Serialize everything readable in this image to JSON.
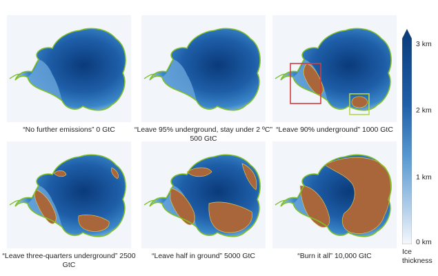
{
  "panels": [
    {
      "caption": "“No further emissions” 0 GtC",
      "scenario": "none",
      "boxes": false
    },
    {
      "caption": "“Leave 95% underground, stay under 2 ºC” 500 GtC",
      "scenario": "minimal",
      "boxes": false
    },
    {
      "caption": "“Leave 90% underground” 1000 GtC",
      "scenario": "low",
      "boxes": true
    },
    {
      "caption": "“Leave three-quarters underground” 2500 GtC",
      "scenario": "mid",
      "boxes": false
    },
    {
      "caption": "“Leave half in ground” 5000 GtC",
      "scenario": "high",
      "boxes": false
    },
    {
      "caption": "“Burn it all” 10,000 GtC",
      "scenario": "max",
      "boxes": false
    }
  ],
  "colorbar": {
    "ticks": [
      "3 km",
      "2 km",
      "1 km",
      "0 km"
    ],
    "title_line1": "Ice",
    "title_line2": "thickness",
    "colors": {
      "thick": "#0a3a7a",
      "mid": "#3a86c8",
      "thin": "#dfe9f5",
      "bedrock": "#a8663a",
      "grounding_line": "#7fbf2a",
      "box_red": "#d93a3a",
      "box_green": "#b5d94a"
    }
  }
}
